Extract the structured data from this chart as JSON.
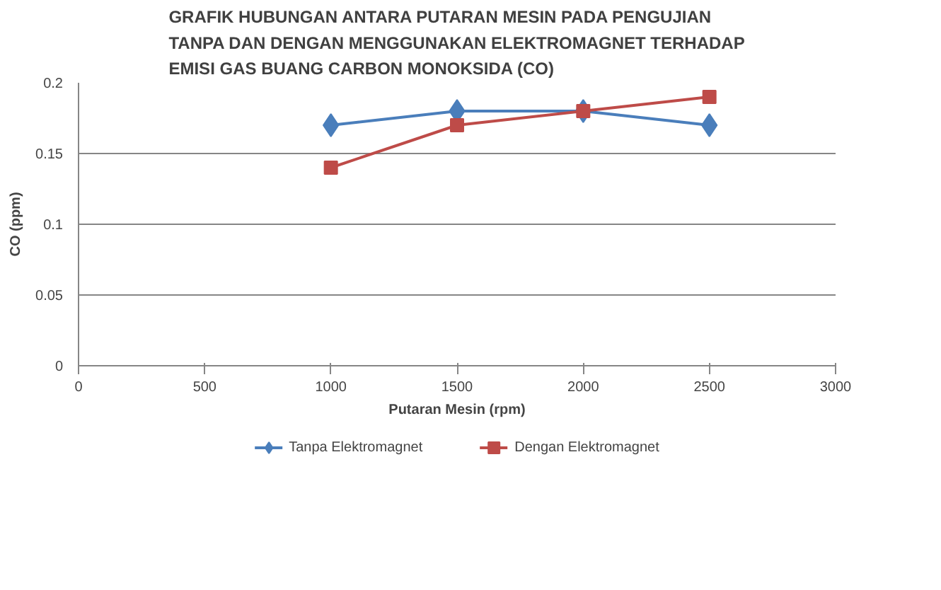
{
  "chart_data": {
    "type": "line",
    "title": "GRAFIK HUBUNGAN ANTARA PUTARAN MESIN PADA PENGUJIAN\nTANPA DAN DENGAN MENGGUNAKAN ELEKTROMAGNET TERHADAP\nEMISI GAS BUANG CARBON MONOKSIDA (CO)",
    "xlabel": "Putaran Mesin (rpm)",
    "ylabel": "CO (ppm)",
    "x": [
      1000,
      1500,
      2000,
      2500
    ],
    "series": [
      {
        "name": "Tanpa Elektromagnet",
        "color": "#4a7ebb",
        "marker": "diamond",
        "values": [
          0.17,
          0.18,
          0.18,
          0.17
        ]
      },
      {
        "name": "Dengan Elektromagnet",
        "color": "#be4b48",
        "marker": "square",
        "values": [
          0.14,
          0.17,
          0.18,
          0.19
        ]
      }
    ],
    "xlim": [
      0,
      3000
    ],
    "xticks": [
      0,
      500,
      1000,
      1500,
      2000,
      2500,
      3000
    ],
    "ylim": [
      0,
      0.2
    ],
    "yticks": [
      0,
      0.05,
      0.1,
      0.15,
      0.2
    ],
    "grid": "y",
    "legend": "bottom",
    "line_style": "solid"
  }
}
